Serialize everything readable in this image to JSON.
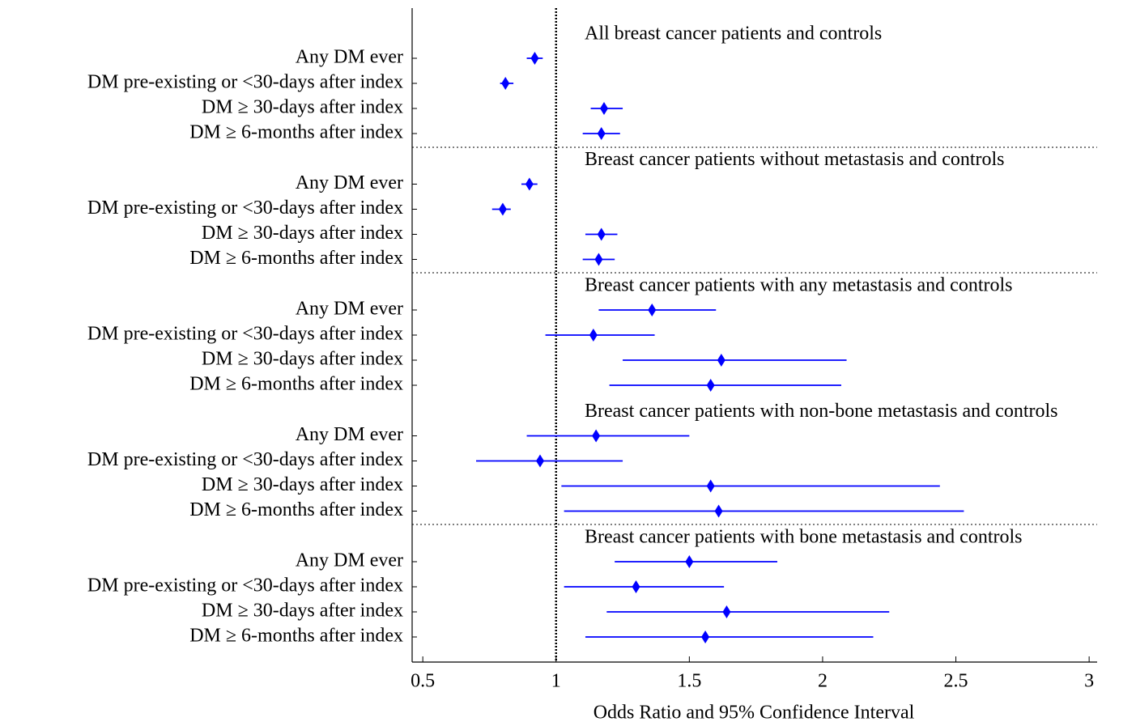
{
  "chart_data": {
    "type": "forest",
    "xlabel": "Odds Ratio and 95% Confidence Interval",
    "xlim": [
      0.46,
      3.03
    ],
    "xticks": [
      0.5,
      1,
      1.5,
      2,
      2.5,
      3
    ],
    "reference_line": 1,
    "color": "#0000ff",
    "groups": [
      {
        "title": "All breast cancer patients and controls",
        "categories": [
          "Any DM ever",
          "DM pre-existing or <30-days after index",
          "DM ≥ 30-days after index",
          "DM ≥ 6-months after index"
        ],
        "values": [
          0.92,
          0.81,
          1.18,
          1.17
        ],
        "lower": [
          0.89,
          0.79,
          1.13,
          1.1
        ],
        "upper": [
          0.95,
          0.84,
          1.25,
          1.24
        ]
      },
      {
        "title": "Breast cancer patients without metastasis and controls",
        "categories": [
          "Any DM ever",
          "DM pre-existing or <30-days after index",
          "DM ≥ 30-days after index",
          "DM ≥ 6-months after index"
        ],
        "values": [
          0.9,
          0.8,
          1.17,
          1.16
        ],
        "lower": [
          0.87,
          0.76,
          1.11,
          1.1
        ],
        "upper": [
          0.93,
          0.83,
          1.23,
          1.22
        ]
      },
      {
        "title": "Breast cancer patients with any metastasis and controls",
        "categories": [
          "Any DM ever",
          "DM pre-existing or <30-days after index",
          "DM ≥ 30-days after index",
          "DM ≥ 6-months after index"
        ],
        "values": [
          1.36,
          1.14,
          1.62,
          1.58
        ],
        "lower": [
          1.16,
          0.96,
          1.25,
          1.2
        ],
        "upper": [
          1.6,
          1.37,
          2.09,
          2.07
        ]
      },
      {
        "title": "Breast cancer patients with non-bone metastasis and controls",
        "categories": [
          "Any DM ever",
          "DM pre-existing or <30-days after index",
          "DM ≥ 30-days after index",
          "DM ≥ 6-months after index"
        ],
        "values": [
          1.15,
          0.94,
          1.58,
          1.61
        ],
        "lower": [
          0.89,
          0.7,
          1.02,
          1.03
        ],
        "upper": [
          1.5,
          1.25,
          2.44,
          2.53
        ]
      },
      {
        "title": "Breast cancer patients with bone metastasis and controls",
        "categories": [
          "Any DM ever",
          "DM pre-existing or <30-days after index",
          "DM ≥ 30-days after index",
          "DM ≥ 6-months after index"
        ],
        "values": [
          1.5,
          1.3,
          1.64,
          1.56
        ],
        "lower": [
          1.22,
          1.03,
          1.19,
          1.11
        ],
        "upper": [
          1.83,
          1.63,
          2.25,
          2.19
        ]
      }
    ]
  }
}
